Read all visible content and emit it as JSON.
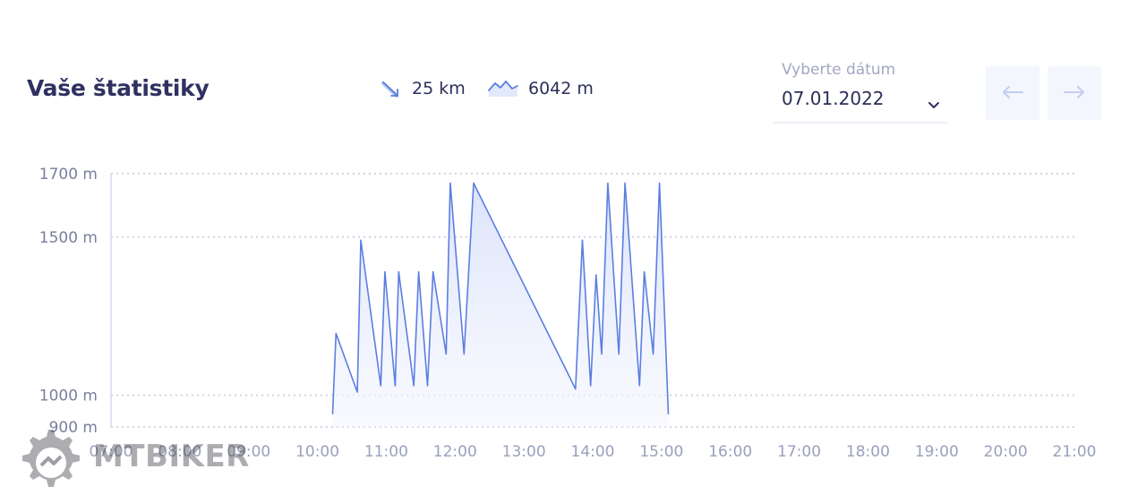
{
  "header": {
    "title": "Vaše štatistiky",
    "distance": "25 km",
    "elevation": "6042 m"
  },
  "date_picker": {
    "label": "Vyberte dátum",
    "value": "07.01.2022"
  },
  "nav": {
    "prev_icon": "arrow-left-icon",
    "next_icon": "arrow-right-icon"
  },
  "watermark": {
    "text": "MTBIKER"
  },
  "colors": {
    "line": "#5b7ee0",
    "grid": "#cfd5e6",
    "tick": "#7a7f9c",
    "fill": "#e8edfc"
  },
  "chart_data": {
    "type": "area",
    "x_unit": "hours",
    "y_unit": "m",
    "ylim": [
      900,
      1700
    ],
    "y_ticks": [
      900,
      1000,
      1500,
      1700
    ],
    "y_tick_labels": [
      "900 m",
      "1000 m",
      "1500 m",
      "1700 m"
    ],
    "xlim": [
      7,
      21
    ],
    "x_ticks": [
      "07:00",
      "08:00",
      "09:00",
      "10:00",
      "11:00",
      "12:00",
      "13:00",
      "14:00",
      "15:00",
      "16:00",
      "17:00",
      "18:00",
      "19:00",
      "20:00",
      "21:00"
    ],
    "grid": true,
    "series": [
      {
        "x": [
          10.22,
          10.27,
          10.58,
          10.63,
          10.92,
          10.98,
          11.13,
          11.18,
          11.4,
          11.47,
          11.6,
          11.68,
          11.87,
          11.93,
          12.13,
          12.27,
          13.75,
          13.85,
          13.97,
          14.05,
          14.13,
          14.22,
          14.38,
          14.47,
          14.68,
          14.75,
          14.88,
          14.97,
          15.1
        ],
        "y": [
          940,
          1195,
          1010,
          1490,
          1030,
          1390,
          1030,
          1390,
          1030,
          1390,
          1030,
          1390,
          1130,
          1670,
          1130,
          1670,
          1020,
          1490,
          1030,
          1380,
          1130,
          1670,
          1130,
          1670,
          1030,
          1390,
          1130,
          1670,
          940
        ]
      }
    ]
  }
}
